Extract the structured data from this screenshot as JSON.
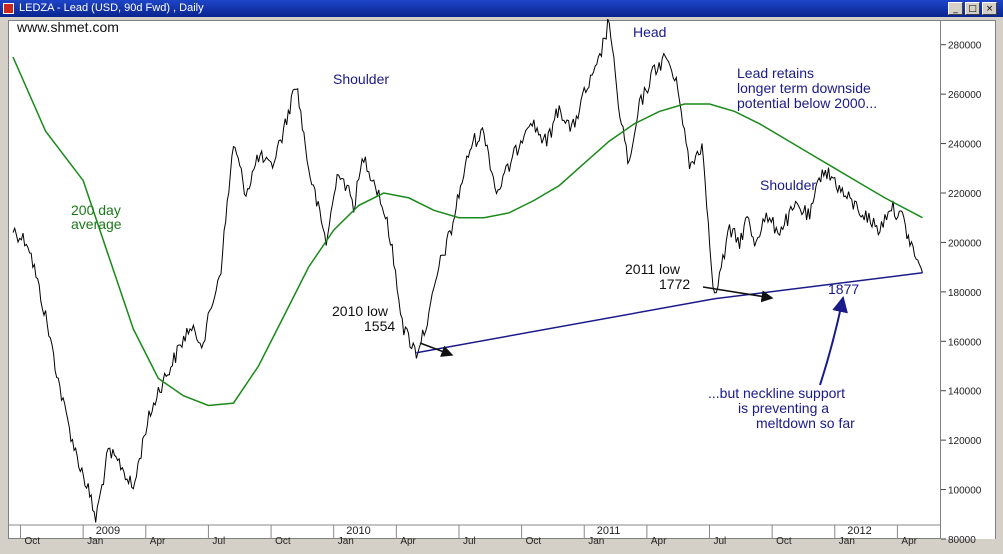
{
  "window": {
    "title": "LEDZA - Lead (USD, 90d Fwd) , Daily"
  },
  "watermark": "www.shmet.com",
  "colors": {
    "price": "#000000",
    "ma": "#1a8a1a",
    "neckline": "#1a1a8a",
    "annotation_blue": "#1a1a8a",
    "annotation_green": "#1a7a1a"
  },
  "annotations": {
    "head": "Head",
    "left_shoulder": "Shoulder",
    "right_shoulder": "Shoulder",
    "ma_line1": "200 day",
    "ma_line2": "average",
    "note1_line1": "Lead retains",
    "note1_line2": "longer term downside",
    "note1_line3": "potential below 2000...",
    "low2010_line1": "2010 low",
    "low2010_line2": "1554",
    "low2011_line1": "2011 low",
    "low2011_line2": "1772",
    "neck_value": "1877",
    "note2_line1": "...but neckline support",
    "note2_line2": "is preventing a",
    "note2_line3": "meltdown so far"
  },
  "chart_data": {
    "type": "line",
    "title": "LEDZA - Lead (USD, 90d Fwd) , Daily",
    "ylim": [
      800,
      2900
    ],
    "y_ticks": [
      800,
      1000,
      1200,
      1400,
      1600,
      1800,
      2000,
      2200,
      2400,
      2600,
      2800
    ],
    "y_tick_labels": [
      "80000",
      "100000",
      "120000",
      "140000",
      "160000",
      "180000",
      "200000",
      "220000",
      "240000",
      "260000",
      "280000"
    ],
    "month_labels": [
      "Oct",
      "Jan",
      "Apr",
      "Jul",
      "Oct",
      "Jan",
      "Apr",
      "Jul",
      "Oct",
      "Jan",
      "Apr",
      "Jul",
      "Oct",
      "Jan",
      "Apr"
    ],
    "year_labels": [
      "2009",
      "2010",
      "2011",
      "2012"
    ],
    "grid": false,
    "series": [
      {
        "kind": "price",
        "x": [
          2008.72,
          2008.78,
          2008.85,
          2008.92,
          2008.97,
          2009.02,
          2009.05,
          2009.1,
          2009.15,
          2009.2,
          2009.25,
          2009.3,
          2009.35,
          2009.42,
          2009.48,
          2009.55,
          2009.6,
          2009.65,
          2009.7,
          2009.75,
          2009.8,
          2009.85,
          2009.9,
          2009.97,
          2010.02,
          2010.08,
          2010.12,
          2010.18,
          2010.22,
          2010.28,
          2010.33,
          2010.38,
          2010.42,
          2010.47,
          2010.5,
          2010.55,
          2010.6,
          2010.65,
          2010.72,
          2010.78,
          2010.85,
          2010.9,
          2010.95,
          2011.0,
          2011.05,
          2011.1,
          2011.13,
          2011.18,
          2011.22,
          2011.28,
          2011.33,
          2011.38,
          2011.42,
          2011.47,
          2011.52,
          2011.58,
          2011.62,
          2011.65,
          2011.68,
          2011.72,
          2011.78,
          2011.85,
          2011.9,
          2011.95,
          2012.0,
          2012.03,
          2012.08,
          2012.13,
          2012.18,
          2012.22,
          2012.27,
          2012.3,
          2012.35
        ],
        "values": [
          2050,
          2000,
          1700,
          1350,
          1150,
          1000,
          880,
          1150,
          1100,
          1000,
          1250,
          1400,
          1500,
          1650,
          1600,
          1900,
          2400,
          2200,
          2350,
          2300,
          2450,
          2650,
          2300,
          2000,
          2300,
          2150,
          2350,
          2200,
          2050,
          1650,
          1554,
          1700,
          1900,
          2050,
          2200,
          2400,
          2450,
          2200,
          2350,
          2500,
          2400,
          2550,
          2450,
          2600,
          2700,
          2900,
          2600,
          2300,
          2550,
          2700,
          2750,
          2600,
          2300,
          2400,
          1772,
          2050,
          2000,
          2100,
          2000,
          2100,
          2050,
          2150,
          2100,
          2300,
          2250,
          2200,
          2150,
          2100,
          2050,
          2150,
          2100,
          2000,
          1877
        ]
      },
      {
        "kind": "moving_average",
        "x": [
          2008.72,
          2008.85,
          2009.0,
          2009.1,
          2009.2,
          2009.3,
          2009.4,
          2009.5,
          2009.6,
          2009.7,
          2009.8,
          2009.9,
          2010.0,
          2010.1,
          2010.2,
          2010.3,
          2010.4,
          2010.5,
          2010.6,
          2010.7,
          2010.8,
          2010.9,
          2011.0,
          2011.1,
          2011.2,
          2011.3,
          2011.4,
          2011.5,
          2011.6,
          2011.7,
          2011.8,
          2011.9,
          2012.0,
          2012.1,
          2012.2,
          2012.35
        ],
        "values": [
          2750,
          2450,
          2250,
          1950,
          1650,
          1450,
          1380,
          1340,
          1350,
          1500,
          1700,
          1900,
          2050,
          2150,
          2200,
          2180,
          2130,
          2100,
          2100,
          2120,
          2170,
          2230,
          2320,
          2410,
          2480,
          2530,
          2560,
          2560,
          2530,
          2480,
          2420,
          2360,
          2300,
          2240,
          2180,
          2100
        ]
      },
      {
        "kind": "neckline",
        "x": [
          2010.33,
          2011.52,
          2012.35
        ],
        "values": [
          1554,
          1772,
          1877
        ]
      }
    ]
  }
}
